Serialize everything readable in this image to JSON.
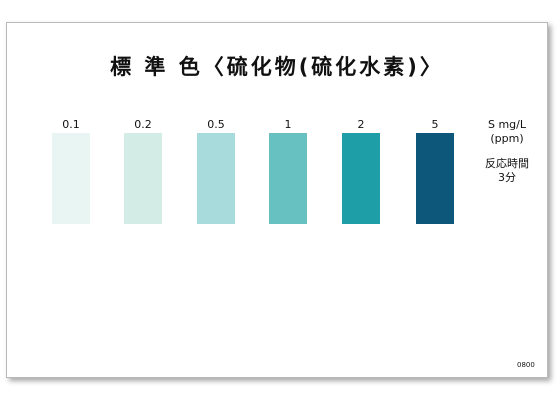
{
  "card": {
    "title": "標 準 色〈硫化物(硫化水素)〉",
    "levels": [
      {
        "value": "0.1",
        "color": "#e8f5f2"
      },
      {
        "value": "0.2",
        "color": "#d3ede6"
      },
      {
        "value": "0.5",
        "color": "#a8dcdc"
      },
      {
        "value": "1",
        "color": "#66c1c0"
      },
      {
        "value": "2",
        "color": "#1e9ea6"
      },
      {
        "value": "5",
        "color": "#0d577a"
      }
    ],
    "unit_line1": "S mg/L",
    "unit_line2": "(ppm)",
    "time_line1": "反応時間",
    "time_line2": "3分",
    "code": "0800"
  }
}
